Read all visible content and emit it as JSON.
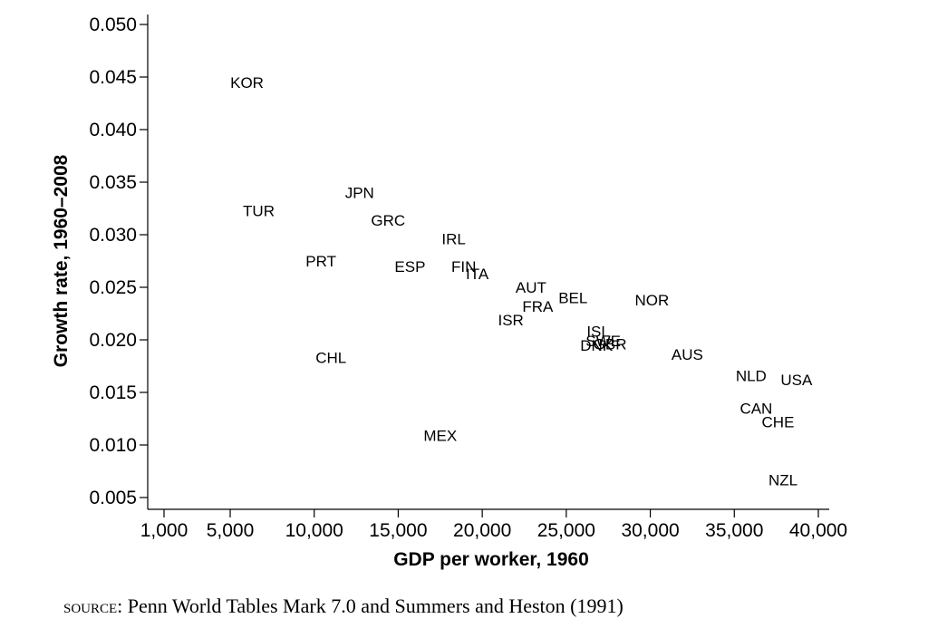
{
  "source": {
    "label": "SOURCE:",
    "text": "Penn World Tables Mark 7.0 and Summers and Heston (1991)"
  },
  "chart_data": {
    "type": "scatter",
    "title": "",
    "xlabel": "GDP per worker, 1960",
    "ylabel": "Growth rate, 1960–2008",
    "xlim": [
      0,
      40000
    ],
    "ylim": [
      0.004,
      0.051
    ],
    "x_ticks": [
      {
        "value": 1000,
        "label": "1,000"
      },
      {
        "value": 5000,
        "label": "5,000"
      },
      {
        "value": 10000,
        "label": "10,000"
      },
      {
        "value": 15000,
        "label": "15,000"
      },
      {
        "value": 20000,
        "label": "20,000"
      },
      {
        "value": 25000,
        "label": "25,000"
      },
      {
        "value": 30000,
        "label": "30,000"
      },
      {
        "value": 35000,
        "label": "35,000"
      },
      {
        "value": 40000,
        "label": "40,000"
      }
    ],
    "y_ticks": [
      {
        "value": 0.005,
        "label": "0.005"
      },
      {
        "value": 0.01,
        "label": "0.010"
      },
      {
        "value": 0.015,
        "label": "0.015"
      },
      {
        "value": 0.02,
        "label": "0.020"
      },
      {
        "value": 0.025,
        "label": "0.025"
      },
      {
        "value": 0.03,
        "label": "0.030"
      },
      {
        "value": 0.035,
        "label": "0.035"
      },
      {
        "value": 0.04,
        "label": "0.040"
      },
      {
        "value": 0.045,
        "label": "0.045"
      },
      {
        "value": 0.05,
        "label": "0.050"
      }
    ],
    "grid": false,
    "marker": "text-label",
    "points": [
      {
        "label": "KOR",
        "x": 6000,
        "y": 0.0445
      },
      {
        "label": "TUR",
        "x": 6700,
        "y": 0.0323
      },
      {
        "label": "JPN",
        "x": 12700,
        "y": 0.034
      },
      {
        "label": "GRC",
        "x": 14400,
        "y": 0.0314
      },
      {
        "label": "IRL",
        "x": 18300,
        "y": 0.0296
      },
      {
        "label": "PRT",
        "x": 10400,
        "y": 0.0275
      },
      {
        "value_note": "",
        "label": "ESP",
        "x": 15700,
        "y": 0.027
      },
      {
        "label": "FIN",
        "x": 18900,
        "y": 0.027
      },
      {
        "label": "ITA",
        "x": 19700,
        "y": 0.0263
      },
      {
        "label": "AUT",
        "x": 22900,
        "y": 0.025
      },
      {
        "label": "FRA",
        "x": 23300,
        "y": 0.0232
      },
      {
        "label": "BEL",
        "x": 25400,
        "y": 0.024
      },
      {
        "label": "ISR",
        "x": 21700,
        "y": 0.0219
      },
      {
        "label": "NOR",
        "x": 30100,
        "y": 0.0238
      },
      {
        "label": "ISL",
        "x": 26900,
        "y": 0.0208
      },
      {
        "label": "SWE",
        "x": 27200,
        "y": 0.0199
      },
      {
        "label": "GBR",
        "x": 27600,
        "y": 0.0196
      },
      {
        "label": "DNK",
        "x": 26800,
        "y": 0.0195
      },
      {
        "label": "CHL",
        "x": 11000,
        "y": 0.0183
      },
      {
        "label": "AUS",
        "x": 32200,
        "y": 0.0186
      },
      {
        "label": "NLD",
        "x": 36000,
        "y": 0.0166
      },
      {
        "label": "USA",
        "x": 38700,
        "y": 0.0162
      },
      {
        "label": "CAN",
        "x": 36300,
        "y": 0.0135
      },
      {
        "label": "CHE",
        "x": 37600,
        "y": 0.0122
      },
      {
        "label": "MEX",
        "x": 17500,
        "y": 0.0109
      },
      {
        "label": "NZL",
        "x": 37900,
        "y": 0.0067
      }
    ]
  }
}
